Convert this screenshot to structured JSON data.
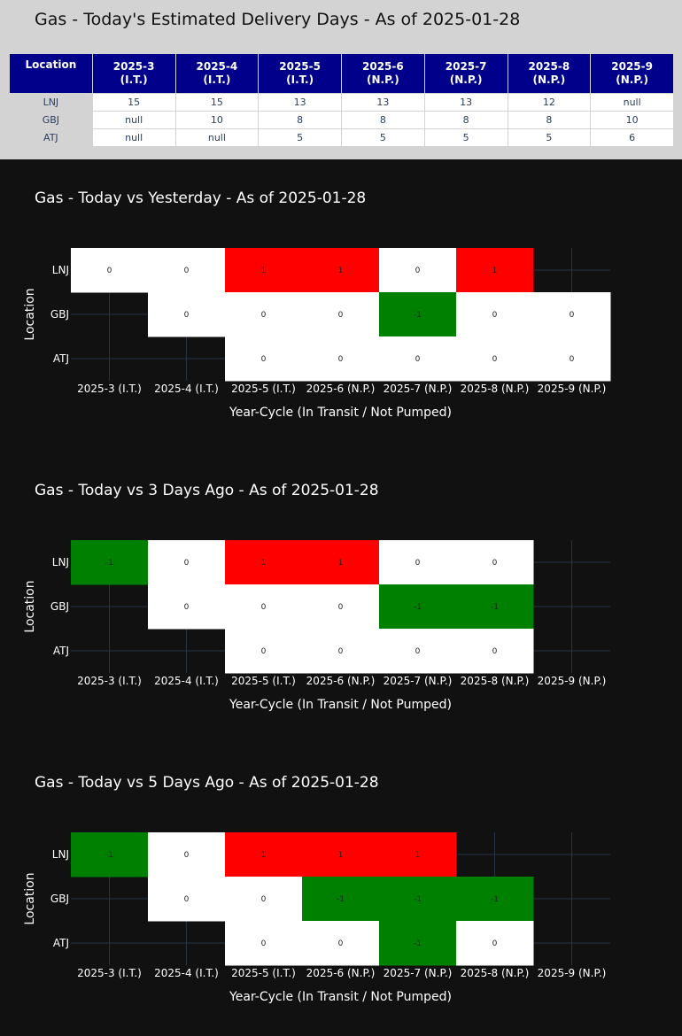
{
  "colors": {
    "positive": "#ff0000",
    "negative": "#008000",
    "zero": "#ffffff",
    "header_bg": "#00008b",
    "grid": "#283442"
  },
  "summary": {
    "title": "Gas - Today's Estimated Delivery Days - As of 2025-01-28",
    "header": {
      "location": "Location",
      "columns": [
        {
          "cycle": "2025-3",
          "status": "(I.T.)"
        },
        {
          "cycle": "2025-4",
          "status": "(I.T.)"
        },
        {
          "cycle": "2025-5",
          "status": "(I.T.)"
        },
        {
          "cycle": "2025-6",
          "status": "(N.P.)"
        },
        {
          "cycle": "2025-7",
          "status": "(N.P.)"
        },
        {
          "cycle": "2025-8",
          "status": "(N.P.)"
        },
        {
          "cycle": "2025-9",
          "status": "(N.P.)"
        }
      ]
    },
    "rows": [
      {
        "location": "LNJ",
        "values": [
          "15",
          "15",
          "13",
          "13",
          "13",
          "12",
          "null"
        ]
      },
      {
        "location": "GBJ",
        "values": [
          "null",
          "10",
          "8",
          "8",
          "8",
          "8",
          "10"
        ]
      },
      {
        "location": "ATJ",
        "values": [
          "null",
          "null",
          "5",
          "5",
          "5",
          "5",
          "6"
        ]
      }
    ]
  },
  "chart_data": [
    {
      "type": "heatmap",
      "title": "Gas - Today vs Yesterday - As of 2025-01-28",
      "xlabel": "Year-Cycle (In Transit / Not Pumped)",
      "ylabel": "Location",
      "x": [
        "2025-3 (I.T.)",
        "2025-4 (I.T.)",
        "2025-5 (I.T.)",
        "2025-6 (N.P.)",
        "2025-7 (N.P.)",
        "2025-8 (N.P.)",
        "2025-9 (N.P.)"
      ],
      "y": [
        "LNJ",
        "GBJ",
        "ATJ"
      ],
      "z": [
        [
          0,
          0,
          1,
          1,
          0,
          1,
          null
        ],
        [
          null,
          0,
          0,
          0,
          -1,
          0,
          0
        ],
        [
          null,
          null,
          0,
          0,
          0,
          0,
          0
        ]
      ]
    },
    {
      "type": "heatmap",
      "title": "Gas - Today vs 3 Days Ago - As of 2025-01-28",
      "xlabel": "Year-Cycle (In Transit / Not Pumped)",
      "ylabel": "Location",
      "x": [
        "2025-3 (I.T.)",
        "2025-4 (I.T.)",
        "2025-5 (I.T.)",
        "2025-6 (N.P.)",
        "2025-7 (N.P.)",
        "2025-8 (N.P.)",
        "2025-9 (N.P.)"
      ],
      "y": [
        "LNJ",
        "GBJ",
        "ATJ"
      ],
      "z": [
        [
          -1,
          0,
          1,
          1,
          0,
          0,
          null
        ],
        [
          null,
          0,
          0,
          0,
          -1,
          -1,
          null
        ],
        [
          null,
          null,
          0,
          0,
          0,
          0,
          null
        ]
      ]
    },
    {
      "type": "heatmap",
      "title": "Gas - Today vs 5 Days Ago - As of 2025-01-28",
      "xlabel": "Year-Cycle (In Transit / Not Pumped)",
      "ylabel": "Location",
      "x": [
        "2025-3 (I.T.)",
        "2025-4 (I.T.)",
        "2025-5 (I.T.)",
        "2025-6 (N.P.)",
        "2025-7 (N.P.)",
        "2025-8 (N.P.)",
        "2025-9 (N.P.)"
      ],
      "y": [
        "LNJ",
        "GBJ",
        "ATJ"
      ],
      "z": [
        [
          -1,
          0,
          1,
          1,
          1,
          null,
          null
        ],
        [
          null,
          0,
          0,
          -1,
          -1,
          -1,
          null
        ],
        [
          null,
          null,
          0,
          0,
          -1,
          0,
          null
        ]
      ]
    }
  ]
}
